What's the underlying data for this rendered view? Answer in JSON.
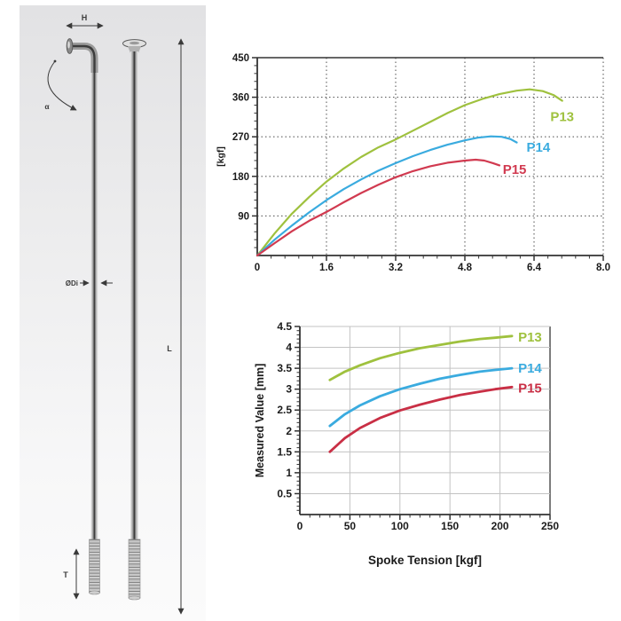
{
  "diagram": {
    "labels": {
      "head_width": "H",
      "bend_angle": "α",
      "diameter": "ØDi",
      "length": "L",
      "thread": "T"
    }
  },
  "chart_data": [
    {
      "id": "load-curve-chart",
      "type": "line",
      "title": "",
      "xlabel": "",
      "ylabel": "[kgf]",
      "xlim": [
        0,
        8.0
      ],
      "ylim": [
        0,
        450
      ],
      "xtick_values": [
        0,
        1.6,
        3.2,
        4.8,
        6.4,
        8.0
      ],
      "xtick_labels": [
        "0",
        "1.6",
        "3.2",
        "4.8",
        "6.4",
        "8.0"
      ],
      "ytick_values": [
        90,
        180,
        270,
        360,
        450
      ],
      "ytick_labels": [
        "90",
        "180",
        "270",
        "360",
        "450"
      ],
      "grid": "dashed",
      "frame": "top",
      "legend_position": "on-curve",
      "series": [
        {
          "name": "P13",
          "color": "#9fc13e",
          "label_pos": [
            7.05,
            316
          ],
          "points": [
            [
              0,
              0
            ],
            [
              0.4,
              50
            ],
            [
              0.8,
              95
            ],
            [
              1.2,
              133
            ],
            [
              1.6,
              168
            ],
            [
              2.0,
              198
            ],
            [
              2.4,
              224
            ],
            [
              2.8,
              246
            ],
            [
              3.2,
              264
            ],
            [
              3.6,
              284
            ],
            [
              4.0,
              304
            ],
            [
              4.4,
              324
            ],
            [
              4.8,
              342
            ],
            [
              5.2,
              356
            ],
            [
              5.6,
              367
            ],
            [
              6.0,
              375
            ],
            [
              6.3,
              378
            ],
            [
              6.6,
              374
            ],
            [
              6.85,
              365
            ],
            [
              7.05,
              352
            ]
          ]
        },
        {
          "name": "P14",
          "color": "#3aabdf",
          "label_pos": [
            6.5,
            246
          ],
          "points": [
            [
              0,
              0
            ],
            [
              0.4,
              36
            ],
            [
              0.8,
              68
            ],
            [
              1.2,
              98
            ],
            [
              1.6,
              126
            ],
            [
              2.0,
              151
            ],
            [
              2.4,
              173
            ],
            [
              2.8,
              193
            ],
            [
              3.2,
              210
            ],
            [
              3.6,
              226
            ],
            [
              4.0,
              240
            ],
            [
              4.4,
              252
            ],
            [
              4.8,
              262
            ],
            [
              5.1,
              268
            ],
            [
              5.4,
              271
            ],
            [
              5.65,
              270
            ],
            [
              5.85,
              265
            ],
            [
              6.0,
              257
            ]
          ]
        },
        {
          "name": "P15",
          "color": "#d13a50",
          "label_pos": [
            5.95,
            196
          ],
          "points": [
            [
              0,
              0
            ],
            [
              0.4,
              28
            ],
            [
              0.8,
              55
            ],
            [
              1.2,
              79
            ],
            [
              1.6,
              99
            ],
            [
              2.0,
              121
            ],
            [
              2.4,
              142
            ],
            [
              2.8,
              161
            ],
            [
              3.2,
              178
            ],
            [
              3.6,
              192
            ],
            [
              4.0,
              203
            ],
            [
              4.4,
              211
            ],
            [
              4.8,
              216
            ],
            [
              5.05,
              218
            ],
            [
              5.25,
              216
            ],
            [
              5.45,
              210
            ],
            [
              5.6,
              205
            ]
          ]
        }
      ]
    },
    {
      "id": "elongation-chart",
      "type": "line",
      "title": "",
      "xlabel": "Spoke Tension [kgf]",
      "ylabel": "Measured Value [mm]",
      "xlim": [
        0,
        250
      ],
      "ylim": [
        0,
        4.5
      ],
      "xtick_values": [
        0,
        50,
        100,
        150,
        200,
        250
      ],
      "xtick_labels": [
        "0",
        "50",
        "100",
        "150",
        "200",
        "250"
      ],
      "ytick_values": [
        0.5,
        1,
        1.5,
        2,
        2.5,
        3,
        3.5,
        4,
        4.5
      ],
      "ytick_labels": [
        "0.5",
        "1",
        "1.5",
        "2",
        "2.5",
        "3",
        "3.5",
        "4",
        "4.5"
      ],
      "grid": "solid",
      "frame": "right",
      "legend_position": "on-curve",
      "series": [
        {
          "name": "P13",
          "color": "#9fc13e",
          "label_pos": [
            230,
            4.24
          ],
          "points": [
            [
              30,
              3.22
            ],
            [
              45,
              3.42
            ],
            [
              60,
              3.57
            ],
            [
              80,
              3.74
            ],
            [
              100,
              3.87
            ],
            [
              120,
              3.98
            ],
            [
              140,
              4.06
            ],
            [
              160,
              4.14
            ],
            [
              180,
              4.2
            ],
            [
              195,
              4.23
            ],
            [
              212,
              4.27
            ]
          ]
        },
        {
          "name": "P14",
          "color": "#3aabdf",
          "label_pos": [
            230,
            3.5
          ],
          "points": [
            [
              30,
              2.12
            ],
            [
              45,
              2.4
            ],
            [
              60,
              2.61
            ],
            [
              80,
              2.83
            ],
            [
              100,
              3.0
            ],
            [
              120,
              3.13
            ],
            [
              140,
              3.25
            ],
            [
              160,
              3.34
            ],
            [
              180,
              3.42
            ],
            [
              195,
              3.46
            ],
            [
              212,
              3.5
            ]
          ]
        },
        {
          "name": "P15",
          "color": "#c92f45",
          "label_pos": [
            230,
            3.02
          ],
          "points": [
            [
              30,
              1.5
            ],
            [
              45,
              1.83
            ],
            [
              60,
              2.07
            ],
            [
              80,
              2.31
            ],
            [
              100,
              2.49
            ],
            [
              120,
              2.63
            ],
            [
              140,
              2.75
            ],
            [
              160,
              2.86
            ],
            [
              180,
              2.94
            ],
            [
              195,
              3.0
            ],
            [
              212,
              3.05
            ]
          ]
        }
      ]
    }
  ]
}
